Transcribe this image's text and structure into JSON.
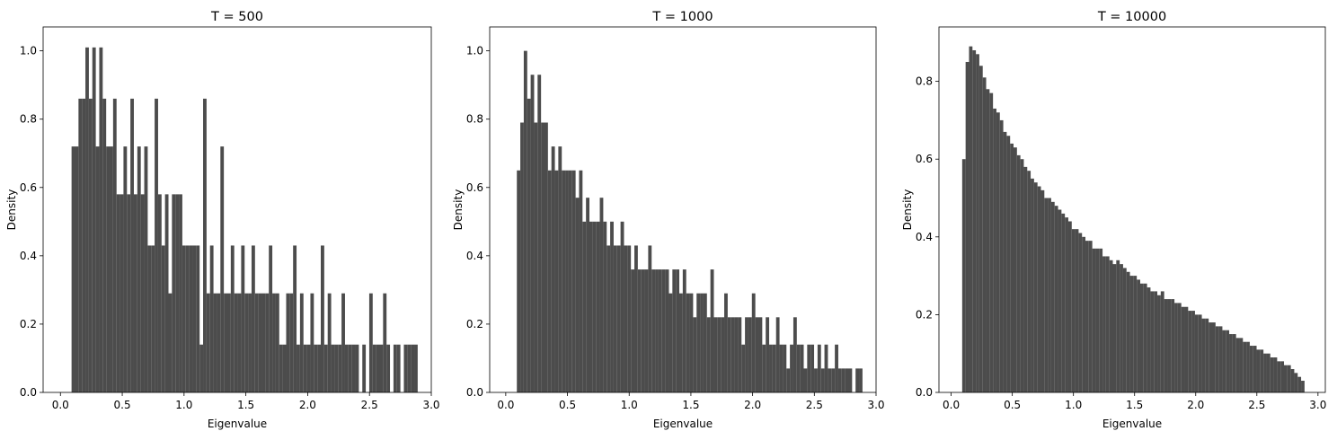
{
  "chart_data": [
    {
      "type": "histogram",
      "title": "T = 500",
      "xlabel": "Eigenvalue",
      "ylabel": "Density",
      "color": "#4c4c4c",
      "xlim": [
        -0.14,
        3.0
      ],
      "ylim": [
        0,
        1.07
      ],
      "xticks": [
        {
          "value": 0,
          "label": "0.0"
        },
        {
          "value": 0.5,
          "label": "0.5"
        },
        {
          "value": 1,
          "label": "1.0"
        },
        {
          "value": 1.5,
          "label": "1.5"
        },
        {
          "value": 2,
          "label": "2.0"
        },
        {
          "value": 2.5,
          "label": "2.5"
        },
        {
          "value": 3,
          "label": "3.0"
        }
      ],
      "yticks": [
        {
          "value": 0,
          "label": "0.0"
        },
        0.2,
        0.4,
        0.6,
        0.8,
        {
          "value": 1,
          "label": "1.0"
        }
      ],
      "bins": [
        0.09,
        0.118,
        0.146,
        0.174,
        0.202,
        0.23,
        0.258,
        0.286,
        0.314,
        0.342,
        0.37,
        0.398,
        0.426,
        0.454,
        0.482,
        0.51,
        0.538,
        0.566,
        0.594,
        0.622,
        0.65,
        0.678,
        0.706,
        0.734,
        0.762,
        0.79,
        0.818,
        0.846,
        0.874,
        0.902,
        0.93,
        0.958,
        0.986,
        1.014,
        1.042,
        1.07,
        1.098,
        1.126,
        1.154,
        1.182,
        1.21,
        1.238,
        1.266,
        1.294,
        1.322,
        1.35,
        1.378,
        1.406,
        1.434,
        1.462,
        1.49,
        1.518,
        1.546,
        1.574,
        1.602,
        1.63,
        1.658,
        1.686,
        1.714,
        1.742,
        1.77,
        1.798,
        1.826,
        1.854,
        1.882,
        1.91,
        1.938,
        1.966,
        1.994,
        2.022,
        2.05,
        2.078,
        2.106,
        2.134,
        2.162,
        2.19,
        2.218,
        2.246,
        2.274,
        2.302,
        2.33,
        2.358,
        2.386,
        2.414,
        2.442,
        2.47,
        2.498,
        2.526,
        2.554,
        2.582,
        2.61,
        2.638,
        2.666,
        2.694,
        2.722,
        2.75,
        2.778,
        2.806,
        2.834,
        2.862,
        2.89
      ],
      "values": [
        0.72,
        0.72,
        0.86,
        0.86,
        1.01,
        0.86,
        1.01,
        0.72,
        1.01,
        0.86,
        0.72,
        0.72,
        0.86,
        0.58,
        0.58,
        0.72,
        0.58,
        0.86,
        0.58,
        0.72,
        0.58,
        0.72,
        0.43,
        0.43,
        0.86,
        0.58,
        0.43,
        0.58,
        0.29,
        0.58,
        0.58,
        0.58,
        0.43,
        0.43,
        0.43,
        0.43,
        0.43,
        0.14,
        0.86,
        0.29,
        0.43,
        0.29,
        0.29,
        0.72,
        0.29,
        0.29,
        0.43,
        0.29,
        0.29,
        0.43,
        0.29,
        0.29,
        0.43,
        0.29,
        0.29,
        0.29,
        0.29,
        0.43,
        0.29,
        0.29,
        0.14,
        0.14,
        0.29,
        0.29,
        0.43,
        0.14,
        0.29,
        0.14,
        0.14,
        0.29,
        0.14,
        0.14,
        0.43,
        0.14,
        0.29,
        0.14,
        0.14,
        0.14,
        0.29,
        0.14,
        0.14,
        0.14,
        0.14,
        0,
        0.14,
        0,
        0.29,
        0.14,
        0.14,
        0.14,
        0.29,
        0.14,
        0,
        0.14,
        0.14,
        0,
        0.14,
        0.14,
        0.14,
        0.14
      ]
    },
    {
      "type": "histogram",
      "title": "T = 1000",
      "xlabel": "Eigenvalue",
      "ylabel": "Density",
      "color": "#4c4c4c",
      "xlim": [
        -0.13,
        3.0
      ],
      "ylim": [
        0,
        1.07
      ],
      "xticks": [
        {
          "value": 0,
          "label": "0.0"
        },
        {
          "value": 0.5,
          "label": "0.5"
        },
        {
          "value": 1,
          "label": "1.0"
        },
        {
          "value": 1.5,
          "label": "1.5"
        },
        {
          "value": 2,
          "label": "2.0"
        },
        {
          "value": 2.5,
          "label": "2.5"
        },
        {
          "value": 3,
          "label": "3.0"
        }
      ],
      "yticks": [
        {
          "value": 0,
          "label": "0.0"
        },
        0.2,
        0.4,
        0.6,
        0.8,
        {
          "value": 1,
          "label": "1.0"
        }
      ],
      "bins": [
        0.09,
        0.118,
        0.146,
        0.174,
        0.202,
        0.23,
        0.258,
        0.286,
        0.314,
        0.342,
        0.37,
        0.398,
        0.426,
        0.454,
        0.482,
        0.51,
        0.538,
        0.566,
        0.594,
        0.622,
        0.65,
        0.678,
        0.706,
        0.734,
        0.762,
        0.79,
        0.818,
        0.846,
        0.874,
        0.902,
        0.93,
        0.958,
        0.986,
        1.014,
        1.042,
        1.07,
        1.098,
        1.126,
        1.154,
        1.182,
        1.21,
        1.238,
        1.266,
        1.294,
        1.322,
        1.35,
        1.378,
        1.406,
        1.434,
        1.462,
        1.49,
        1.518,
        1.546,
        1.574,
        1.602,
        1.63,
        1.658,
        1.686,
        1.714,
        1.742,
        1.77,
        1.798,
        1.826,
        1.854,
        1.882,
        1.91,
        1.938,
        1.966,
        1.994,
        2.022,
        2.05,
        2.078,
        2.106,
        2.134,
        2.162,
        2.19,
        2.218,
        2.246,
        2.274,
        2.302,
        2.33,
        2.358,
        2.386,
        2.414,
        2.442,
        2.47,
        2.498,
        2.526,
        2.554,
        2.582,
        2.61,
        2.638,
        2.666,
        2.694,
        2.722,
        2.75,
        2.778,
        2.806,
        2.834,
        2.862,
        2.89
      ],
      "values": [
        0.65,
        0.79,
        1.0,
        0.86,
        0.93,
        0.79,
        0.93,
        0.79,
        0.79,
        0.65,
        0.72,
        0.65,
        0.72,
        0.65,
        0.65,
        0.65,
        0.65,
        0.57,
        0.65,
        0.5,
        0.57,
        0.5,
        0.5,
        0.5,
        0.57,
        0.5,
        0.43,
        0.5,
        0.43,
        0.43,
        0.5,
        0.43,
        0.43,
        0.36,
        0.43,
        0.36,
        0.36,
        0.36,
        0.43,
        0.36,
        0.36,
        0.36,
        0.36,
        0.36,
        0.29,
        0.36,
        0.36,
        0.29,
        0.36,
        0.29,
        0.29,
        0.22,
        0.29,
        0.29,
        0.29,
        0.22,
        0.36,
        0.22,
        0.22,
        0.22,
        0.29,
        0.22,
        0.22,
        0.22,
        0.22,
        0.14,
        0.22,
        0.22,
        0.29,
        0.22,
        0.22,
        0.14,
        0.22,
        0.14,
        0.14,
        0.22,
        0.14,
        0.14,
        0.07,
        0.14,
        0.22,
        0.14,
        0.14,
        0.07,
        0.14,
        0.14,
        0.07,
        0.14,
        0.07,
        0.14,
        0.07,
        0.07,
        0.14,
        0.07,
        0.07,
        0.07,
        0.07,
        0,
        0.07,
        0.07
      ]
    },
    {
      "type": "histogram",
      "title": "T = 10000",
      "xlabel": "Eigenvalue",
      "ylabel": "Density",
      "color": "#4c4c4c",
      "xlim": [
        -0.1,
        3.06
      ],
      "ylim": [
        0,
        0.94
      ],
      "xticks": [
        {
          "value": 0,
          "label": "0.0"
        },
        {
          "value": 0.5,
          "label": "0.5"
        },
        {
          "value": 1,
          "label": "1.0"
        },
        {
          "value": 1.5,
          "label": "1.5"
        },
        {
          "value": 2,
          "label": "2.0"
        },
        {
          "value": 2.5,
          "label": "2.5"
        },
        {
          "value": 3,
          "label": "3.0"
        }
      ],
      "yticks": [
        {
          "value": 0,
          "label": "0.0"
        },
        0.2,
        0.4,
        0.6,
        0.8
      ],
      "bins": [
        0.09,
        0.118,
        0.146,
        0.174,
        0.202,
        0.23,
        0.258,
        0.286,
        0.314,
        0.342,
        0.37,
        0.398,
        0.426,
        0.454,
        0.482,
        0.51,
        0.538,
        0.566,
        0.594,
        0.622,
        0.65,
        0.678,
        0.706,
        0.734,
        0.762,
        0.79,
        0.818,
        0.846,
        0.874,
        0.902,
        0.93,
        0.958,
        0.986,
        1.014,
        1.042,
        1.07,
        1.098,
        1.126,
        1.154,
        1.182,
        1.21,
        1.238,
        1.266,
        1.294,
        1.322,
        1.35,
        1.378,
        1.406,
        1.434,
        1.462,
        1.49,
        1.518,
        1.546,
        1.574,
        1.602,
        1.63,
        1.658,
        1.686,
        1.714,
        1.742,
        1.77,
        1.798,
        1.826,
        1.854,
        1.882,
        1.91,
        1.938,
        1.966,
        1.994,
        2.022,
        2.05,
        2.078,
        2.106,
        2.134,
        2.162,
        2.19,
        2.218,
        2.246,
        2.274,
        2.302,
        2.33,
        2.358,
        2.386,
        2.414,
        2.442,
        2.47,
        2.498,
        2.526,
        2.554,
        2.582,
        2.61,
        2.638,
        2.666,
        2.694,
        2.722,
        2.75,
        2.778,
        2.806,
        2.834,
        2.862,
        2.89
      ],
      "values": [
        0.6,
        0.85,
        0.89,
        0.88,
        0.87,
        0.84,
        0.81,
        0.78,
        0.77,
        0.73,
        0.72,
        0.7,
        0.67,
        0.66,
        0.64,
        0.63,
        0.61,
        0.6,
        0.58,
        0.57,
        0.55,
        0.54,
        0.53,
        0.52,
        0.5,
        0.5,
        0.49,
        0.48,
        0.47,
        0.46,
        0.45,
        0.44,
        0.42,
        0.42,
        0.41,
        0.4,
        0.39,
        0.39,
        0.37,
        0.37,
        0.37,
        0.35,
        0.35,
        0.34,
        0.33,
        0.34,
        0.33,
        0.32,
        0.31,
        0.3,
        0.3,
        0.29,
        0.28,
        0.28,
        0.27,
        0.26,
        0.26,
        0.25,
        0.26,
        0.24,
        0.24,
        0.24,
        0.23,
        0.23,
        0.22,
        0.22,
        0.21,
        0.21,
        0.2,
        0.2,
        0.19,
        0.19,
        0.18,
        0.18,
        0.17,
        0.17,
        0.16,
        0.16,
        0.15,
        0.15,
        0.14,
        0.14,
        0.13,
        0.13,
        0.12,
        0.12,
        0.11,
        0.11,
        0.1,
        0.1,
        0.09,
        0.09,
        0.08,
        0.08,
        0.07,
        0.07,
        0.06,
        0.05,
        0.04,
        0.03
      ]
    }
  ]
}
